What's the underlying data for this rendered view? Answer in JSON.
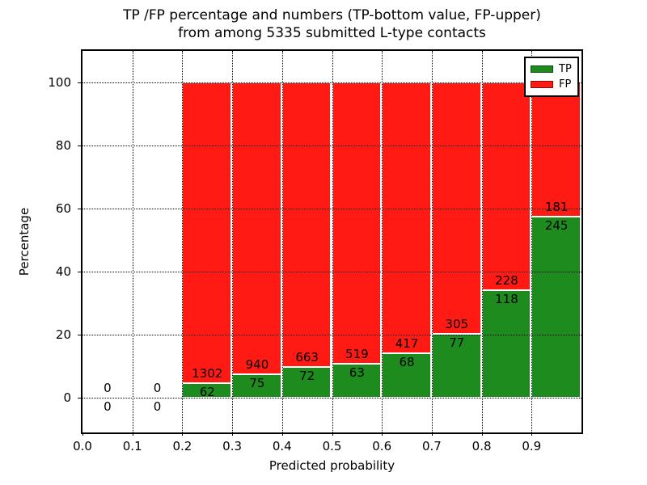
{
  "title": {
    "line1": "TP /FP percentage and numbers (TP-bottom value, FP-upper)",
    "line2": "from among 5335 submitted L-type contacts"
  },
  "chart_data": {
    "type": "bar",
    "stacked": true,
    "normalized": "each bar scaled to 100%, segment heights are TP/(TP+FP) and FP/(TP+FP)",
    "title": "TP /FP percentage and numbers (TP-bottom value, FP-upper) from among 5335 submitted L-type contacts",
    "xlabel": "Predicted probability",
    "ylabel": "Percentage",
    "xlim": [
      0.0,
      1.0
    ],
    "ylim": [
      -11,
      110
    ],
    "bin_width": 0.1,
    "grid": "dotted",
    "categories": [
      0.0,
      0.1,
      0.2,
      0.3,
      0.4,
      0.5,
      0.6,
      0.7,
      0.8,
      0.9
    ],
    "x_ticks": [
      {
        "value": 0.0,
        "label": "0.0"
      },
      {
        "value": 0.1,
        "label": "0.1"
      },
      {
        "value": 0.2,
        "label": "0.2"
      },
      {
        "value": 0.3,
        "label": "0.3"
      },
      {
        "value": 0.4,
        "label": "0.4"
      },
      {
        "value": 0.5,
        "label": "0.5"
      },
      {
        "value": 0.6,
        "label": "0.6"
      },
      {
        "value": 0.7,
        "label": "0.7"
      },
      {
        "value": 0.8,
        "label": "0.8"
      },
      {
        "value": 0.9,
        "label": "0.9"
      }
    ],
    "y_ticks": [
      {
        "value": 0,
        "label": "0"
      },
      {
        "value": 20,
        "label": "20"
      },
      {
        "value": 40,
        "label": "40"
      },
      {
        "value": 60,
        "label": "60"
      },
      {
        "value": 80,
        "label": "80"
      },
      {
        "value": 100,
        "label": "100"
      }
    ],
    "series": [
      {
        "name": "TP",
        "color": "#1e8b1e",
        "values": [
          0,
          0,
          62,
          75,
          72,
          63,
          68,
          77,
          118,
          245
        ]
      },
      {
        "name": "FP",
        "color": "#ff1a14",
        "values": [
          0,
          0,
          1302,
          940,
          663,
          519,
          417,
          305,
          228,
          181
        ]
      }
    ],
    "legend": {
      "position": "upper right",
      "entries": [
        {
          "label": "TP",
          "color": "#1e8b1e"
        },
        {
          "label": "FP",
          "color": "#ff1a14"
        }
      ]
    },
    "total_contacts": 5335
  }
}
